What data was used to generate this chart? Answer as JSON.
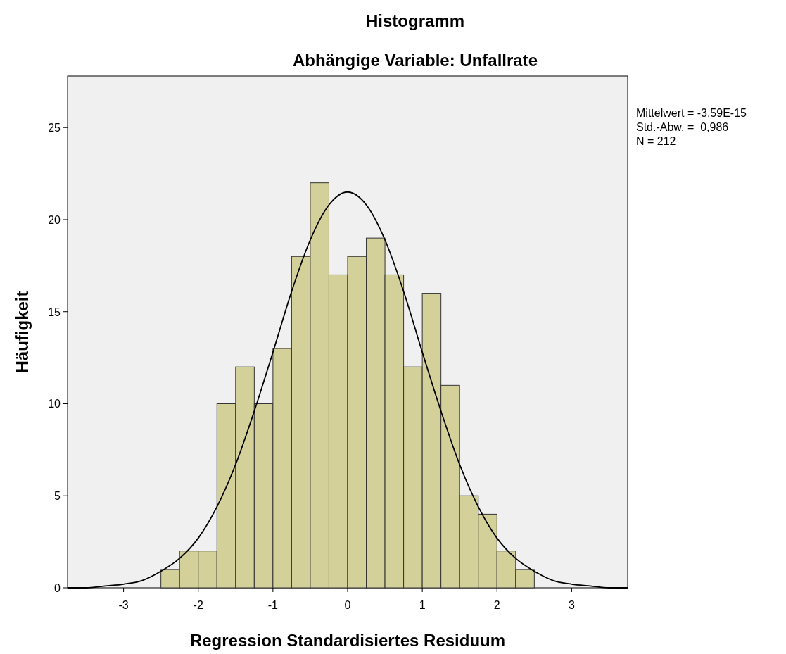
{
  "chart_data": {
    "type": "histogram",
    "title": "Histogramm",
    "subtitle": "Abhängige Variable: Unfallrate",
    "xlabel": "Regression Standardisiertes Residuum",
    "ylabel": "Häufigkeit",
    "bins": [
      -2.5,
      -2.25,
      -2,
      -1.75,
      -1.5,
      -1.25,
      -1,
      -0.75,
      -0.5,
      -0.25,
      0,
      0.25,
      0.5,
      0.75,
      1,
      1.25,
      1.5,
      1.75,
      2,
      2.25,
      2.5
    ],
    "values": [
      1,
      2,
      2,
      10,
      12,
      10,
      13,
      18,
      22,
      17,
      18,
      19,
      17,
      12,
      16,
      11,
      5,
      4,
      2,
      1
    ],
    "color": "#d4d09a",
    "series": [
      {
        "type": "line",
        "color": "#000000",
        "x": [
          -3.75,
          -3.5,
          -3.25,
          -3,
          -2.75,
          -2.5,
          -2.25,
          -2,
          -1.75,
          -1.5,
          -1.25,
          -1,
          -0.75,
          -0.5,
          -0.25,
          0,
          0.25,
          0.5,
          0.75,
          1,
          1.25,
          1.5,
          1.75,
          2,
          2.25,
          2.5,
          2.75,
          3,
          3.25,
          3.5,
          3.75
        ],
        "values": [
          0,
          0,
          0.1,
          0.2,
          0.4,
          0.9,
          1.6,
          2.7,
          4.4,
          6.7,
          9.6,
          12.8,
          16.1,
          18.9,
          20.8,
          21.5,
          20.8,
          18.9,
          16.1,
          12.8,
          9.6,
          6.7,
          4.4,
          2.7,
          1.6,
          0.9,
          0.4,
          0.2,
          0.1,
          0,
          0
        ]
      }
    ],
    "xlim": [
      -3.75,
      3.75
    ],
    "xticks": [
      -3,
      -2,
      -1,
      0,
      1,
      2,
      3
    ],
    "ylim": [
      0,
      27.8
    ],
    "yticks": [
      0,
      5,
      10,
      15,
      20,
      25
    ],
    "grid": false,
    "annotations": [
      "Mittelwert = -3,59E-15",
      "Std.-Abw. =  0,986",
      "N = 212"
    ]
  }
}
